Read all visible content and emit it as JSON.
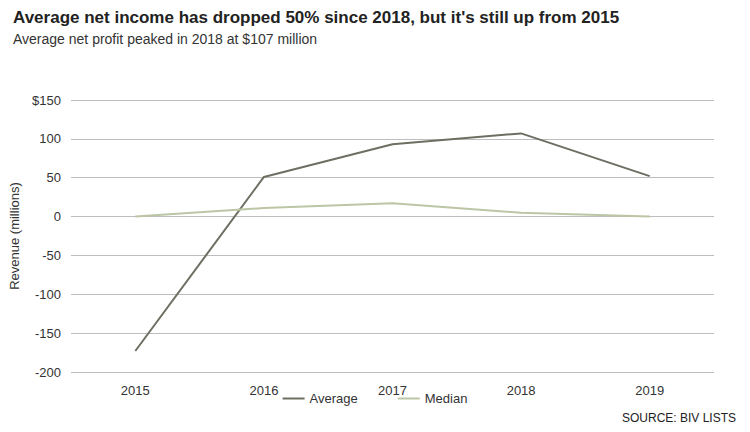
{
  "chart_data": {
    "type": "line",
    "title": "Average net income has dropped 50% since 2018, but it's still up from 2015",
    "subtitle": "Average net profit peaked in 2018 at $107 million",
    "y_label": "Revenue (millions)",
    "source": "SOURCE: BIV LISTS",
    "categories": [
      "2015",
      "2016",
      "2017",
      "2018",
      "2019"
    ],
    "series": [
      {
        "name": "Average",
        "color": "#6e6e62",
        "values": [
          -173,
          51,
          93,
          107,
          52
        ]
      },
      {
        "name": "Median",
        "color": "#bcc6a4",
        "values": [
          0,
          11,
          17,
          5,
          0
        ]
      }
    ],
    "ylim": [
      -200,
      150
    ],
    "yticks": [
      -200,
      -150,
      -100,
      -50,
      0,
      50,
      100,
      {
        "value": 150,
        "label": "$150"
      }
    ],
    "grid": true,
    "legend": "bottom"
  }
}
